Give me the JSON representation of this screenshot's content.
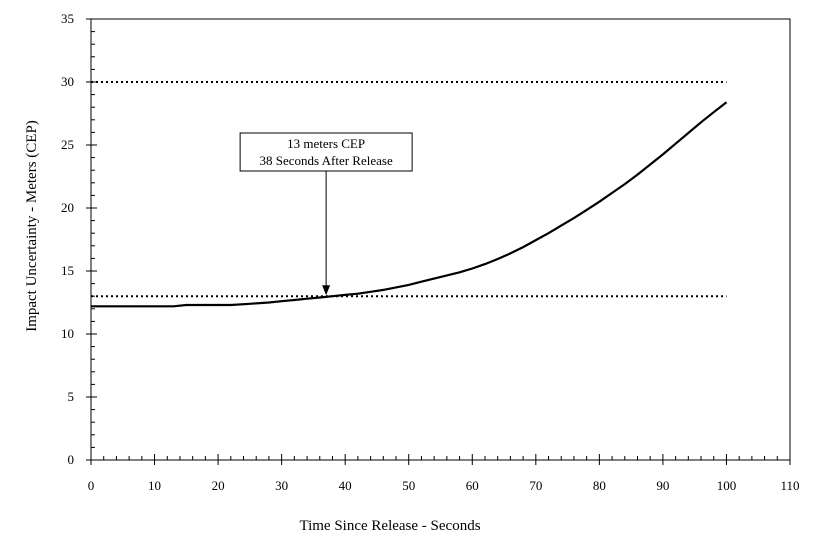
{
  "chart_data": {
    "type": "line",
    "xlabel": "Time Since Release  -  Seconds",
    "ylabel": "Impact Uncertainty  -  Meters (CEP)",
    "xlim": [
      0,
      110
    ],
    "ylim": [
      0,
      35
    ],
    "x_ticks": [
      0,
      10,
      20,
      30,
      40,
      50,
      60,
      70,
      80,
      90,
      100,
      110
    ],
    "y_ticks": [
      0,
      5,
      10,
      15,
      20,
      25,
      30,
      35
    ],
    "x_minor_step": 2,
    "y_minor_step": 1,
    "grid": false,
    "series": [
      {
        "color": "#000000",
        "style": "solid",
        "x": [
          0,
          5,
          10,
          13,
          15,
          20,
          22,
          25,
          28,
          30,
          32,
          34,
          36,
          38,
          40,
          42,
          44,
          46,
          48,
          50,
          52,
          54,
          56,
          58,
          60,
          62,
          64,
          66,
          68,
          70,
          72,
          74,
          76,
          78,
          80,
          82,
          84,
          86,
          88,
          90,
          92,
          94,
          96,
          98,
          100
        ],
        "y": [
          12.2,
          12.2,
          12.2,
          12.2,
          12.3,
          12.3,
          12.3,
          12.4,
          12.5,
          12.6,
          12.7,
          12.8,
          12.9,
          13.0,
          13.1,
          13.2,
          13.35,
          13.5,
          13.7,
          13.9,
          14.15,
          14.4,
          14.65,
          14.9,
          15.2,
          15.55,
          15.95,
          16.4,
          16.9,
          17.45,
          18.0,
          18.6,
          19.2,
          19.85,
          20.5,
          21.2,
          21.9,
          22.65,
          23.45,
          24.25,
          25.1,
          25.95,
          26.8,
          27.6,
          28.4
        ]
      },
      {
        "color": "#000000",
        "style": "dotted",
        "x": [
          0,
          100
        ],
        "y": [
          30,
          30
        ]
      },
      {
        "color": "#000000",
        "style": "dotted",
        "x": [
          0,
          100
        ],
        "y": [
          13,
          13
        ]
      }
    ],
    "annotations": [
      {
        "lines": [
          "13 meters CEP",
          "38 Seconds After Release"
        ],
        "point_x": 37,
        "point_y": 13
      }
    ]
  }
}
